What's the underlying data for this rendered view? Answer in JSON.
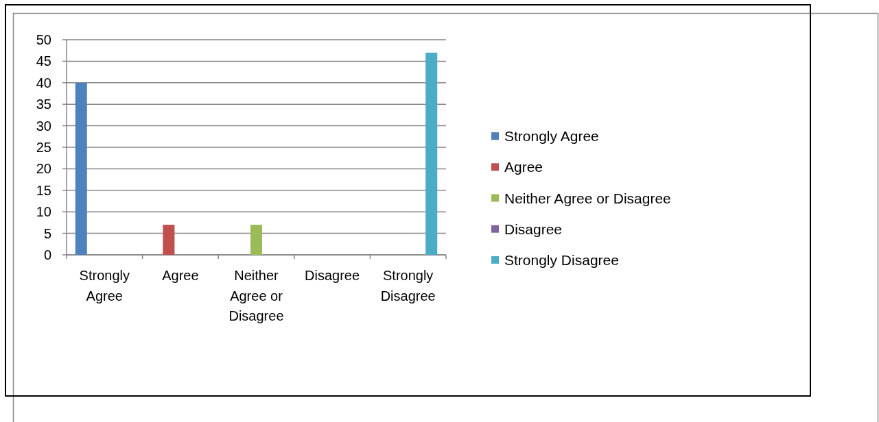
{
  "chart_data": {
    "type": "bar",
    "categories": [
      "Strongly Agree",
      "Agree",
      "Neither Agree or Disagree",
      "Disagree",
      "Strongly Disagree"
    ],
    "series": [
      {
        "name": "Strongly Agree",
        "color": "#4f81bd",
        "values": [
          40,
          null,
          null,
          null,
          null
        ]
      },
      {
        "name": "Agree",
        "color": "#c0504d",
        "values": [
          null,
          7,
          null,
          null,
          null
        ]
      },
      {
        "name": "Neither Agree or Disagree",
        "color": "#9bbb59",
        "values": [
          null,
          null,
          7,
          null,
          null
        ]
      },
      {
        "name": "Disagree",
        "color": "#8064a2",
        "values": [
          null,
          null,
          null,
          0,
          null
        ]
      },
      {
        "name": "Strongly Disagree",
        "color": "#4bacc6",
        "values": [
          null,
          null,
          null,
          null,
          47
        ]
      }
    ],
    "ylim": [
      0,
      50
    ],
    "yticks": [
      0,
      5,
      10,
      15,
      20,
      25,
      30,
      35,
      40,
      45,
      50
    ],
    "grid": "y",
    "legend": "right"
  }
}
